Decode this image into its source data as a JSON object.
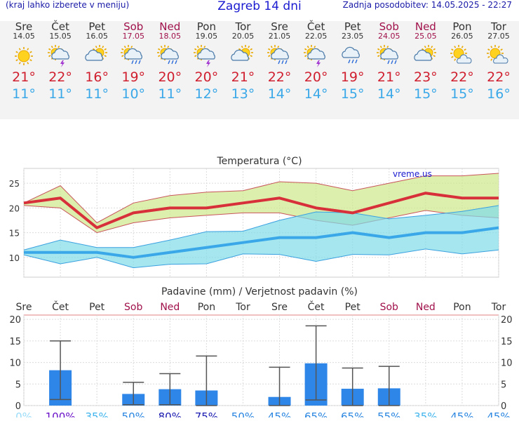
{
  "header": {
    "left": "(kraj lahko izberete v meniju)",
    "title": "Zagreb 14 dni",
    "right": "Zadnja posodobitev: 14.05.2025 - 22:27"
  },
  "days": [
    {
      "name": "Sre",
      "date": "14.05",
      "weekend": false,
      "icon": "sunny-icon",
      "max": "21°",
      "min": "11°"
    },
    {
      "name": "Čet",
      "date": "15.05",
      "weekend": false,
      "icon": "thunderstorm-icon",
      "max": "22°",
      "min": "11°"
    },
    {
      "name": "Pet",
      "date": "16.05",
      "weekend": false,
      "icon": "partly-cloudy-icon",
      "max": "16°",
      "min": "11°"
    },
    {
      "name": "Sob",
      "date": "17.05",
      "weekend": true,
      "icon": "showers-icon",
      "max": "19°",
      "min": "10°"
    },
    {
      "name": "Ned",
      "date": "18.05",
      "weekend": true,
      "icon": "showers-icon",
      "max": "20°",
      "min": "11°"
    },
    {
      "name": "Pon",
      "date": "19.05",
      "weekend": false,
      "icon": "thunderstorm-icon",
      "max": "20°",
      "min": "12°"
    },
    {
      "name": "Tor",
      "date": "20.05",
      "weekend": false,
      "icon": "partly-cloudy-icon",
      "max": "21°",
      "min": "13°"
    },
    {
      "name": "Sre",
      "date": "21.05",
      "weekend": false,
      "icon": "showers-icon",
      "max": "22°",
      "min": "14°"
    },
    {
      "name": "Čet",
      "date": "22.05",
      "weekend": false,
      "icon": "thunderstorm-icon",
      "max": "20°",
      "min": "14°"
    },
    {
      "name": "Pet",
      "date": "23.05",
      "weekend": false,
      "icon": "rain-cloud-icon",
      "max": "19°",
      "min": "15°"
    },
    {
      "name": "Sob",
      "date": "24.05",
      "weekend": true,
      "icon": "showers-icon",
      "max": "21°",
      "min": "14°"
    },
    {
      "name": "Ned",
      "date": "25.05",
      "weekend": true,
      "icon": "partly-cloudy-icon",
      "max": "23°",
      "min": "15°"
    },
    {
      "name": "Pon",
      "date": "26.05",
      "weekend": false,
      "icon": "sun-cloud-icon",
      "max": "22°",
      "min": "15°"
    },
    {
      "name": "Tor",
      "date": "27.05",
      "weekend": false,
      "icon": "sun-cloud-icon",
      "max": "22°",
      "min": "16°"
    }
  ],
  "colors": {
    "max": "#d02030",
    "min": "#3aa8e8",
    "weekend": "#a0104a",
    "bar": "#2e86e8"
  },
  "chart_data": [
    {
      "type": "line",
      "title": "Temperatura (°C)",
      "watermark": "vreme.us",
      "ylim": [
        6,
        28
      ],
      "yticks": [
        10,
        15,
        20,
        25
      ],
      "grid": true,
      "series": [
        {
          "values": [
            21,
            22,
            16,
            19,
            20,
            20,
            21,
            22,
            20,
            19,
            21,
            23,
            22,
            22
          ]
        },
        {
          "values": [
            21,
            24.5,
            17,
            21,
            22.5,
            23.2,
            23.5,
            25.3,
            25,
            23.5,
            25,
            26.5,
            26.5,
            27
          ]
        },
        {
          "values": [
            20.5,
            20,
            15,
            17,
            18,
            18.5,
            19,
            19,
            17.5,
            16.5,
            18,
            19.5,
            18.5,
            18
          ]
        },
        {
          "values": [
            11,
            11,
            11,
            10,
            11,
            12,
            13,
            14,
            14,
            15,
            14,
            15,
            15,
            16
          ]
        },
        {
          "values": [
            11.5,
            13.5,
            12,
            12,
            13.5,
            15.2,
            15.3,
            17.5,
            19.2,
            19,
            17.8,
            18.5,
            19.3,
            20.5
          ]
        },
        {
          "values": [
            10.5,
            8.7,
            10,
            7.9,
            8.6,
            8.7,
            10.7,
            10.6,
            9.2,
            10.6,
            10.5,
            11.7,
            10.7,
            11.5
          ]
        }
      ]
    },
    {
      "type": "bar",
      "title": "Padavine (mm) / Verjetnost padavin (%)",
      "categories": [
        "Sre",
        "Čet",
        "Pet",
        "Sob",
        "Ned",
        "Pon",
        "Tor",
        "Sre",
        "Čet",
        "Pet",
        "Sob",
        "Ned",
        "Pon",
        "Tor"
      ],
      "ylim": [
        0,
        21
      ],
      "yticks": [
        0,
        5,
        10,
        15,
        20
      ],
      "values": [
        0,
        8.2,
        0,
        2.7,
        3.8,
        3.5,
        0,
        2,
        9.8,
        3.9,
        4,
        0,
        0,
        0
      ],
      "err_low": [
        0,
        1.4,
        0,
        0.2,
        0.2,
        0,
        0,
        0,
        1.3,
        0,
        0,
        0,
        0,
        0
      ],
      "err_high": [
        0,
        15,
        0,
        5.4,
        7.4,
        11.5,
        0,
        8.9,
        18.5,
        8.7,
        9.1,
        0,
        0,
        0
      ],
      "probability": [
        "0%",
        "100%",
        "35%",
        "50%",
        "80%",
        "75%",
        "50%",
        "45%",
        "65%",
        "65%",
        "55%",
        "35%",
        "45%",
        "45%"
      ]
    }
  ]
}
